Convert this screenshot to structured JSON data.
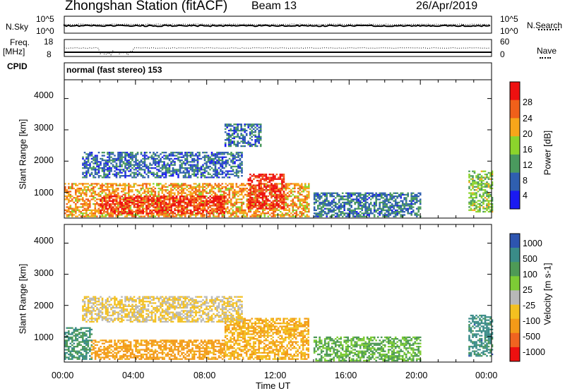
{
  "header": {
    "station": "Zhongshan Station (fitACF)",
    "beam": "Beam 13",
    "date": "26/Apr/2019"
  },
  "top_panels": {
    "nsky_label": "N.Sky",
    "nsky_ticks": [
      "10^5",
      "10^0"
    ],
    "nsearch_label": "N.Search",
    "nsearch_ticks": [
      "10^5",
      "10^0"
    ],
    "freq_label": "Freq.",
    "freq_unit": "[MHz]",
    "freq_ticks": [
      "18",
      "8"
    ],
    "nave_label": "Nave",
    "nave_ticks": [
      "60",
      "0"
    ],
    "cpid_label": "CPID",
    "cpid_text": "normal (fast stereo) 153"
  },
  "axes": {
    "y_title": "Slant Range [km]",
    "y_ticks": [
      "4000",
      "3000",
      "2000",
      "1000"
    ],
    "x_title": "Time UT",
    "x_ticks": [
      "00:00",
      "04:00",
      "08:00",
      "12:00",
      "16:00",
      "20:00",
      "00:00"
    ]
  },
  "colorbars": {
    "power": {
      "title": "Power [dB]",
      "ticks": [
        "28",
        "24",
        "20",
        "16",
        "12",
        "8",
        "4"
      ],
      "colors": [
        "#ee1010",
        "#f0601a",
        "#f7a61a",
        "#8cd42c",
        "#4a9a5e",
        "#2f5fb0",
        "#1a1af2"
      ]
    },
    "velocity": {
      "title": "Velocity [m s-1]",
      "ticks": [
        "1000",
        "500",
        "100",
        "25",
        "-25",
        "-100",
        "-500",
        "-1000"
      ],
      "colors": [
        "#2d55b0",
        "#3a8c88",
        "#4e9a56",
        "#7dcc35",
        "#b8b8b8",
        "#f3c020",
        "#f39a18",
        "#f06420",
        "#ee1010"
      ]
    }
  },
  "chart_data": [
    {
      "type": "heatmap",
      "title": "Power [dB]",
      "xlabel": "Time UT",
      "ylabel": "Slant Range [km]",
      "xlim": [
        "00:00",
        "24:00"
      ],
      "ylim": [
        180,
        4600
      ],
      "colorbar_range": [
        0,
        30
      ],
      "regions": [
        {
          "t_start": 0.0,
          "t_end": 13.7,
          "r_min": 250,
          "r_max": 1300,
          "level": 20
        },
        {
          "t_start": 2.0,
          "t_end": 9.0,
          "r_min": 350,
          "r_max": 900,
          "level": 27
        },
        {
          "t_start": 10.3,
          "t_end": 12.3,
          "r_min": 500,
          "r_max": 1600,
          "level": 27
        },
        {
          "t_start": 1.0,
          "t_end": 10.0,
          "r_min": 1500,
          "r_max": 2300,
          "level": 7
        },
        {
          "t_start": 9.0,
          "t_end": 11.0,
          "r_min": 2500,
          "r_max": 3200,
          "level": 7
        },
        {
          "t_start": 14.0,
          "t_end": 20.0,
          "r_min": 250,
          "r_max": 1000,
          "level": 8
        },
        {
          "t_start": 22.7,
          "t_end": 24.0,
          "r_min": 400,
          "r_max": 1700,
          "level": 14
        }
      ]
    },
    {
      "type": "heatmap",
      "title": "Velocity [m s-1]",
      "xlabel": "Time UT",
      "ylabel": "Slant Range [km]",
      "xlim": [
        "00:00",
        "24:00"
      ],
      "ylim": [
        180,
        4600
      ],
      "colorbar_range": [
        -1000,
        1000
      ],
      "regions": [
        {
          "t_start": 0.0,
          "t_end": 1.5,
          "r_min": 300,
          "r_max": 1300,
          "level": 500
        },
        {
          "t_start": 1.5,
          "t_end": 9.0,
          "r_min": 300,
          "r_max": 900,
          "level": -150
        },
        {
          "t_start": 9.0,
          "t_end": 13.7,
          "r_min": 300,
          "r_max": 1600,
          "level": -100
        },
        {
          "t_start": 1.0,
          "t_end": 10.0,
          "r_min": 1500,
          "r_max": 2300,
          "level": -30
        },
        {
          "t_start": 14.0,
          "t_end": 20.0,
          "r_min": 250,
          "r_max": 1000,
          "level": 100
        },
        {
          "t_start": 22.7,
          "t_end": 24.0,
          "r_min": 400,
          "r_max": 1700,
          "level": 700
        }
      ]
    }
  ]
}
